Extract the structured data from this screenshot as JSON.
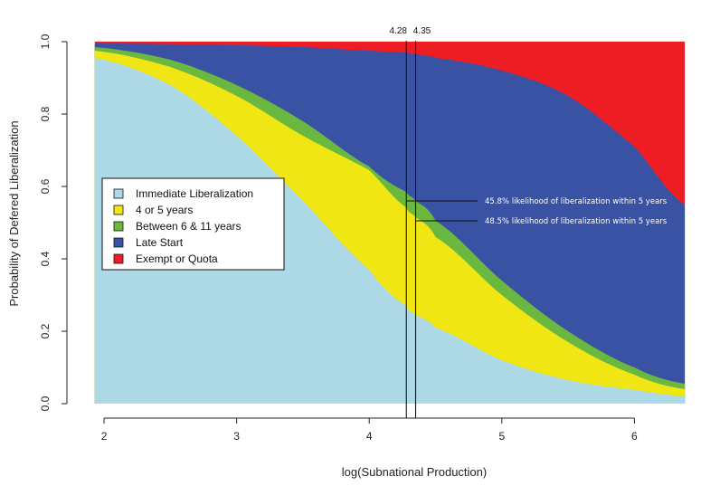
{
  "chart_data": {
    "type": "area",
    "title": "",
    "xlabel": "log(Subnational Production)",
    "ylabel": "Probability of Defered Liberalization",
    "xlim": [
      1.72,
      6.55
    ],
    "ylim": [
      -0.04,
      1.09
    ],
    "data_xrange": [
      1.93,
      6.38
    ],
    "x_ticks": [
      2,
      3,
      4,
      5,
      6
    ],
    "y_ticks": [
      0.0,
      0.2,
      0.4,
      0.6,
      0.8,
      1.0
    ],
    "x_tick_labels": [
      "2",
      "3",
      "4",
      "5",
      "6"
    ],
    "y_tick_labels": [
      "0.0",
      "0.2",
      "0.4",
      "0.6",
      "0.8",
      "1.0"
    ],
    "grid": false,
    "legend_position": "left",
    "x": [
      1.93,
      2.5,
      3.0,
      3.5,
      4.0,
      4.28,
      4.35,
      4.5,
      5.0,
      5.5,
      6.0,
      6.38
    ],
    "series": [
      {
        "name": "Immediate Liberalization",
        "color": "#add8e6",
        "values": [
          0.955,
          0.88,
          0.74,
          0.56,
          0.37,
          0.27,
          0.245,
          0.21,
          0.12,
          0.065,
          0.038,
          0.02
        ]
      },
      {
        "name": "4 or 5 years",
        "color": "#f0e614",
        "values": [
          0.975,
          0.93,
          0.85,
          0.74,
          0.645,
          0.542,
          0.515,
          0.46,
          0.3,
          0.17,
          0.08,
          0.04
        ]
      },
      {
        "name": "Between 6 & 11 years",
        "color": "#6ab840",
        "values": [
          0.985,
          0.95,
          0.88,
          0.78,
          0.655,
          0.585,
          0.56,
          0.505,
          0.34,
          0.2,
          0.1,
          0.055
        ]
      },
      {
        "name": "Late Start",
        "color": "#3a52a3",
        "values": [
          0.995,
          0.993,
          0.99,
          0.985,
          0.975,
          0.97,
          0.965,
          0.955,
          0.92,
          0.85,
          0.71,
          0.55
        ]
      },
      {
        "name": "Exempt or Quota",
        "color": "#ee1d24",
        "values": [
          1.0,
          1.0,
          1.0,
          1.0,
          1.0,
          1.0,
          1.0,
          1.0,
          1.0,
          1.0,
          1.0,
          1.0
        ]
      }
    ],
    "reference_lines": [
      {
        "x": 4.28,
        "label": "4.28"
      },
      {
        "x": 4.35,
        "label": "4.35"
      }
    ],
    "annotations": [
      {
        "x": 4.28,
        "y": 0.56,
        "text": "45.8% likelihood of liberalization within 5 years"
      },
      {
        "x": 4.35,
        "y": 0.505,
        "text": "48.5% likelihood of liberalization within 5 years"
      }
    ]
  }
}
